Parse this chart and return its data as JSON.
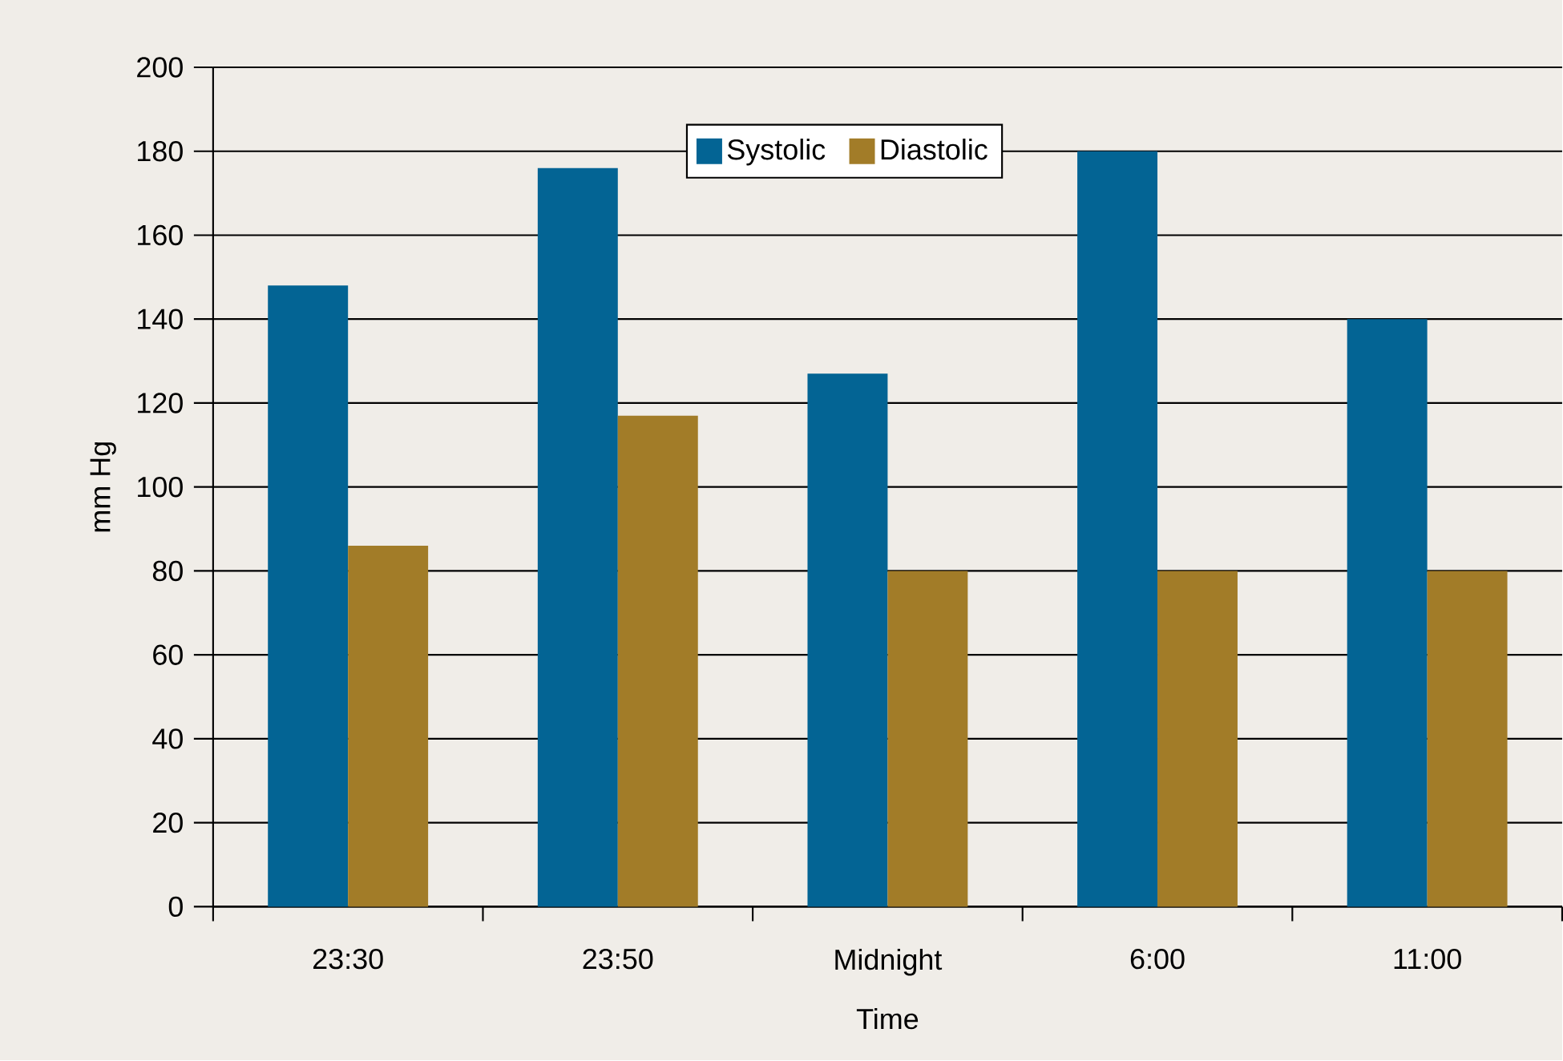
{
  "chart_data": {
    "type": "bar",
    "xlabel": "Time",
    "ylabel": "mm Hg",
    "categories": [
      "23:30",
      "23:50",
      "Midnight",
      "6:00",
      "11:00"
    ],
    "series": [
      {
        "name": "Systolic",
        "color": "#036494",
        "values": [
          148,
          176,
          127,
          180,
          140
        ]
      },
      {
        "name": "Diastolic",
        "color": "#a27c28",
        "values": [
          86,
          117,
          80,
          80,
          80
        ]
      }
    ],
    "ylim": [
      0,
      200
    ],
    "yticks": [
      0,
      20,
      40,
      60,
      80,
      100,
      120,
      140,
      160,
      180,
      200
    ],
    "grid": "y",
    "legend": "top"
  }
}
